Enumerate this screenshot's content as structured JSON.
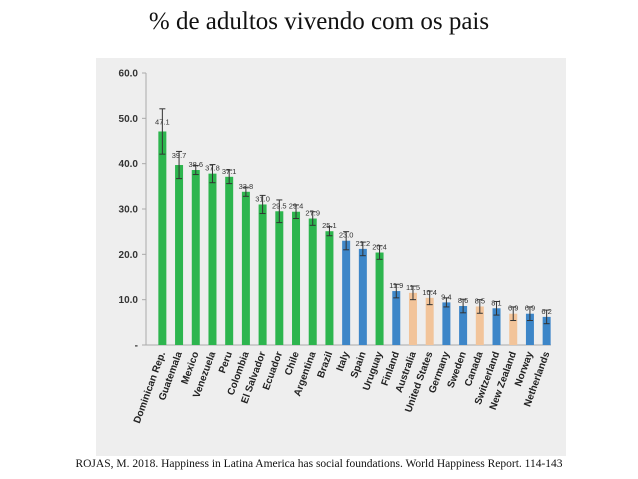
{
  "title": "% de adultos vivendo com os pais",
  "caption": "ROJAS, M. 2018. Happiness in Latina America has social foundations. World Happiness Report. 114-143",
  "colors": {
    "green": "#2db54e",
    "blue": "#3d86c8",
    "tan": "#f2c49a",
    "axis": "#aaaaaa"
  },
  "chart_data": {
    "type": "bar",
    "title": "% de adultos vivendo com os pais",
    "xlabel": "",
    "ylabel": "",
    "ylim": [
      0,
      60
    ],
    "yticks": [
      "-",
      "10.0",
      "20.0",
      "30.0",
      "40.0",
      "50.0",
      "60.0"
    ],
    "grid": false,
    "categories": [
      "Dominican Rep.",
      "Guatemala",
      "Mexico",
      "Venezuela",
      "Peru",
      "Colombia",
      "El Salvador",
      "Ecuador",
      "Chile",
      "Argentina",
      "Brazil",
      "Italy",
      "Spain",
      "Uruguay",
      "Finland",
      "Australia",
      "United States",
      "Germany",
      "Sweden",
      "Canada",
      "Switzerland",
      "New Zealand",
      "Norway",
      "Netherlands"
    ],
    "values": [
      47.1,
      39.7,
      38.6,
      37.8,
      37.1,
      33.8,
      31.0,
      29.5,
      29.4,
      27.9,
      25.1,
      23.0,
      21.2,
      20.4,
      11.9,
      11.5,
      10.4,
      9.4,
      8.6,
      8.5,
      8.1,
      6.9,
      6.9,
      6.2
    ],
    "value_labels": [
      "47.1",
      "39.7",
      "38.6",
      "37.8",
      "37.1",
      "33.8",
      "31.0",
      "29.5",
      "29.4",
      "27.9",
      "25.1",
      "23.0",
      "21.2",
      "20.4",
      "11.9",
      "11.5",
      "10.4",
      "9.4",
      "8.6",
      "8.5",
      "8.1",
      "6.9",
      "6.9",
      "6.2"
    ],
    "errors": [
      5,
      3,
      1,
      2,
      1.5,
      1,
      2,
      2.5,
      1.5,
      1.5,
      1,
      2,
      1.5,
      1.5,
      1.5,
      1.5,
      1.5,
      1,
      1.5,
      1.5,
      1.5,
      1.5,
      1.5,
      1.5
    ],
    "bar_colors": [
      "green",
      "green",
      "green",
      "green",
      "green",
      "green",
      "green",
      "green",
      "green",
      "green",
      "green",
      "blue",
      "blue",
      "green",
      "blue",
      "tan",
      "tan",
      "blue",
      "blue",
      "tan",
      "blue",
      "tan",
      "blue",
      "blue"
    ]
  }
}
